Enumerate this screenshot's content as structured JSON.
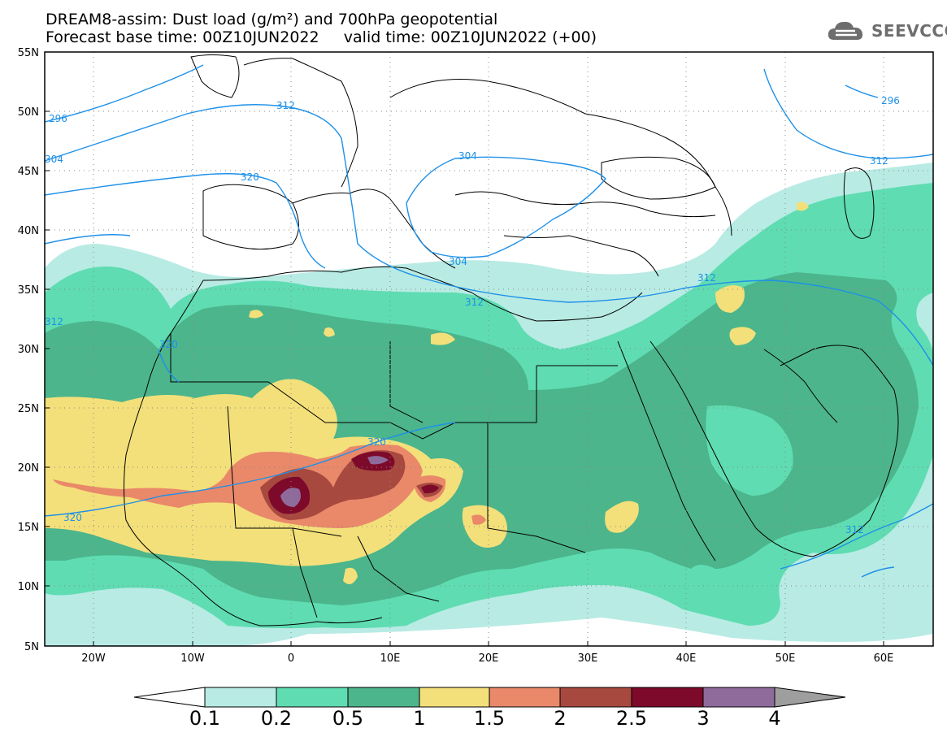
{
  "header": {
    "title_line1": "DREAM8-assim: Dust load (g/m²) and 700hPa geopotential",
    "title_line2": "Forecast base time: 00Z10JUN2022     valid time: 00Z10JUN2022 (+00)",
    "logo_text": "SEEVCCC"
  },
  "axes": {
    "lat_labels": [
      "55N",
      "50N",
      "45N",
      "40N",
      "35N",
      "30N",
      "25N",
      "20N",
      "15N",
      "10N",
      "5N"
    ],
    "lon_labels": [
      "20W",
      "10W",
      "0",
      "10E",
      "20E",
      "30E",
      "40E",
      "50E",
      "60E"
    ]
  },
  "contour_labels": [
    "296",
    "312",
    "304",
    "320",
    "304",
    "304",
    "312",
    "320",
    "312",
    "320",
    "312",
    "296",
    "312",
    "312",
    "320"
  ],
  "colorbar": {
    "ticks": [
      "0.1",
      "0.2",
      "0.5",
      "1",
      "1.5",
      "2",
      "2.5",
      "3",
      "4"
    ],
    "colors": [
      "#b8ebe4",
      "#5fdcb2",
      "#4cb58c",
      "#f3e07a",
      "#e9896a",
      "#a7493f",
      "#7d0a2a",
      "#8f6b9c",
      "#9e9e9e"
    ]
  },
  "map": {
    "lat_range": [
      5,
      55
    ],
    "lon_range": [
      -25,
      65
    ],
    "contour_color": "#1e90e8",
    "dust_colors": {
      "very_light": "#b8ebe4",
      "light": "#5fdcb2",
      "medium": "#4cb58c",
      "yellow": "#f3e07a",
      "orange": "#e9896a",
      "brown": "#a7493f",
      "dark": "#7d0a2a",
      "purple": "#8f6b9c"
    }
  }
}
